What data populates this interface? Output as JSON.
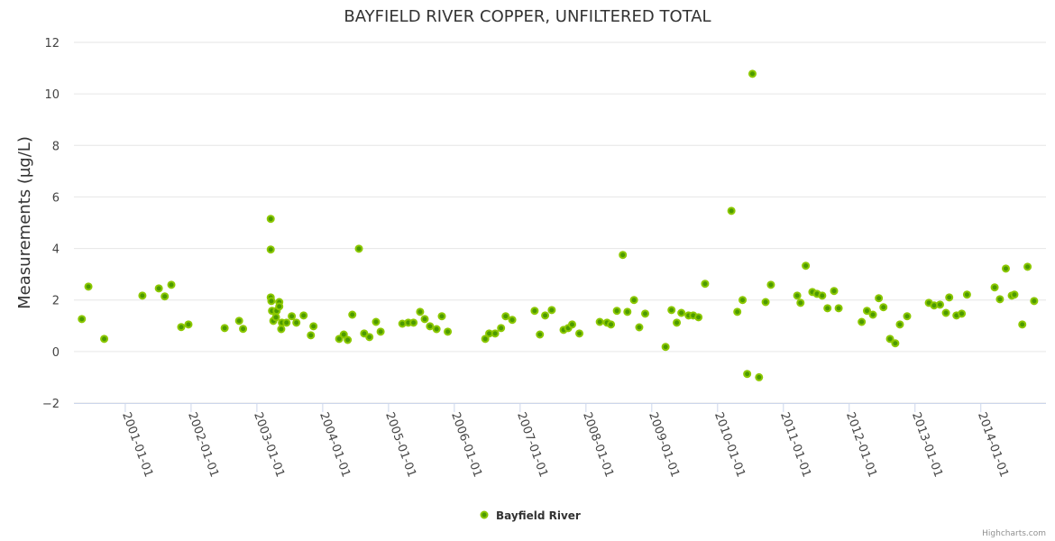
{
  "chart_data": {
    "type": "scatter",
    "title": "BAYFIELD RIVER COPPER, UNFILTERED TOTAL",
    "xlabel": "",
    "ylabel": "Measurements (µg/L)",
    "ylim": [
      -2,
      12
    ],
    "yticks": [
      -2,
      0,
      2,
      4,
      6,
      8,
      10,
      12
    ],
    "xlim": [
      2000.22,
      2014.99
    ],
    "xticks": [
      2001,
      2002,
      2003,
      2004,
      2005,
      2006,
      2007,
      2008,
      2009,
      2010,
      2011,
      2012,
      2013,
      2014
    ],
    "xtick_labels": [
      "2001-01-01",
      "2002-01-01",
      "2003-01-01",
      "2004-01-01",
      "2005-01-01",
      "2006-01-01",
      "2007-01-01",
      "2008-01-01",
      "2009-01-01",
      "2010-01-01",
      "2011-01-01",
      "2012-01-01",
      "2013-01-01",
      "2014-01-01"
    ],
    "grid": true,
    "legend_position": "bottom-center",
    "credit": "Highcharts.com",
    "colors": {
      "marker_fill": "#4c9a00",
      "marker_stroke": "#8cc800",
      "grid": "#e6e6e6"
    },
    "series": [
      {
        "name": "Bayfield River",
        "points": [
          [
            2000.34,
            1.26
          ],
          [
            2000.44,
            2.52
          ],
          [
            2000.68,
            0.49
          ],
          [
            2001.26,
            2.17
          ],
          [
            2001.51,
            2.45
          ],
          [
            2001.6,
            2.14
          ],
          [
            2001.7,
            2.59
          ],
          [
            2001.85,
            0.95
          ],
          [
            2001.96,
            1.05
          ],
          [
            2002.51,
            0.91
          ],
          [
            2002.73,
            1.19
          ],
          [
            2002.79,
            0.88
          ],
          [
            2003.21,
            5.15
          ],
          [
            2003.21,
            3.96
          ],
          [
            2003.21,
            2.1
          ],
          [
            2003.22,
            1.96
          ],
          [
            2003.23,
            1.58
          ],
          [
            2003.25,
            1.19
          ],
          [
            2003.29,
            1.33
          ],
          [
            2003.3,
            1.58
          ],
          [
            2003.34,
            1.92
          ],
          [
            2003.34,
            1.75
          ],
          [
            2003.37,
            0.87
          ],
          [
            2003.38,
            1.12
          ],
          [
            2003.45,
            1.12
          ],
          [
            2003.53,
            1.37
          ],
          [
            2003.6,
            1.12
          ],
          [
            2003.71,
            1.4
          ],
          [
            2003.82,
            0.63
          ],
          [
            2003.86,
            0.98
          ],
          [
            2004.25,
            0.49
          ],
          [
            2004.32,
            0.66
          ],
          [
            2004.38,
            0.45
          ],
          [
            2004.45,
            1.43
          ],
          [
            2004.55,
            3.99
          ],
          [
            2004.63,
            0.7
          ],
          [
            2004.71,
            0.56
          ],
          [
            2004.81,
            1.15
          ],
          [
            2004.88,
            0.77
          ],
          [
            2005.21,
            1.08
          ],
          [
            2005.3,
            1.12
          ],
          [
            2005.38,
            1.12
          ],
          [
            2005.48,
            1.54
          ],
          [
            2005.55,
            1.26
          ],
          [
            2005.63,
            0.98
          ],
          [
            2005.73,
            0.87
          ],
          [
            2005.81,
            1.37
          ],
          [
            2005.9,
            0.77
          ],
          [
            2006.47,
            0.49
          ],
          [
            2006.53,
            0.7
          ],
          [
            2006.62,
            0.7
          ],
          [
            2006.71,
            0.91
          ],
          [
            2006.78,
            1.37
          ],
          [
            2006.88,
            1.23
          ],
          [
            2007.22,
            1.58
          ],
          [
            2007.3,
            0.66
          ],
          [
            2007.38,
            1.4
          ],
          [
            2007.48,
            1.61
          ],
          [
            2007.66,
            0.84
          ],
          [
            2007.73,
            0.91
          ],
          [
            2007.79,
            1.05
          ],
          [
            2007.9,
            0.7
          ],
          [
            2008.21,
            1.15
          ],
          [
            2008.32,
            1.12
          ],
          [
            2008.38,
            1.05
          ],
          [
            2008.47,
            1.58
          ],
          [
            2008.56,
            3.75
          ],
          [
            2008.63,
            1.54
          ],
          [
            2008.73,
            2.0
          ],
          [
            2008.81,
            0.94
          ],
          [
            2008.9,
            1.47
          ],
          [
            2009.21,
            0.18
          ],
          [
            2009.3,
            1.61
          ],
          [
            2009.38,
            1.12
          ],
          [
            2009.45,
            1.5
          ],
          [
            2009.56,
            1.4
          ],
          [
            2009.63,
            1.4
          ],
          [
            2009.71,
            1.33
          ],
          [
            2009.81,
            2.63
          ],
          [
            2010.21,
            5.46
          ],
          [
            2010.3,
            1.54
          ],
          [
            2010.38,
            2.0
          ],
          [
            2010.45,
            -0.87
          ],
          [
            2010.53,
            10.78
          ],
          [
            2010.63,
            -1.0
          ],
          [
            2010.73,
            1.92
          ],
          [
            2010.81,
            2.59
          ],
          [
            2011.21,
            2.17
          ],
          [
            2011.26,
            1.89
          ],
          [
            2011.34,
            3.33
          ],
          [
            2011.44,
            2.31
          ],
          [
            2011.51,
            2.24
          ],
          [
            2011.59,
            2.17
          ],
          [
            2011.67,
            1.68
          ],
          [
            2011.77,
            2.35
          ],
          [
            2011.84,
            1.68
          ],
          [
            2012.19,
            1.15
          ],
          [
            2012.27,
            1.58
          ],
          [
            2012.36,
            1.43
          ],
          [
            2012.45,
            2.07
          ],
          [
            2012.52,
            1.72
          ],
          [
            2012.62,
            0.49
          ],
          [
            2012.7,
            0.32
          ],
          [
            2012.77,
            1.05
          ],
          [
            2012.88,
            1.37
          ],
          [
            2013.21,
            1.89
          ],
          [
            2013.29,
            1.79
          ],
          [
            2013.38,
            1.82
          ],
          [
            2013.47,
            1.5
          ],
          [
            2013.52,
            2.1
          ],
          [
            2013.63,
            1.4
          ],
          [
            2013.71,
            1.47
          ],
          [
            2013.79,
            2.21
          ],
          [
            2014.21,
            2.49
          ],
          [
            2014.29,
            2.03
          ],
          [
            2014.38,
            3.22
          ],
          [
            2014.47,
            2.17
          ],
          [
            2014.51,
            2.21
          ],
          [
            2014.63,
            1.05
          ],
          [
            2014.71,
            3.29
          ],
          [
            2014.81,
            1.96
          ]
        ]
      }
    ]
  }
}
